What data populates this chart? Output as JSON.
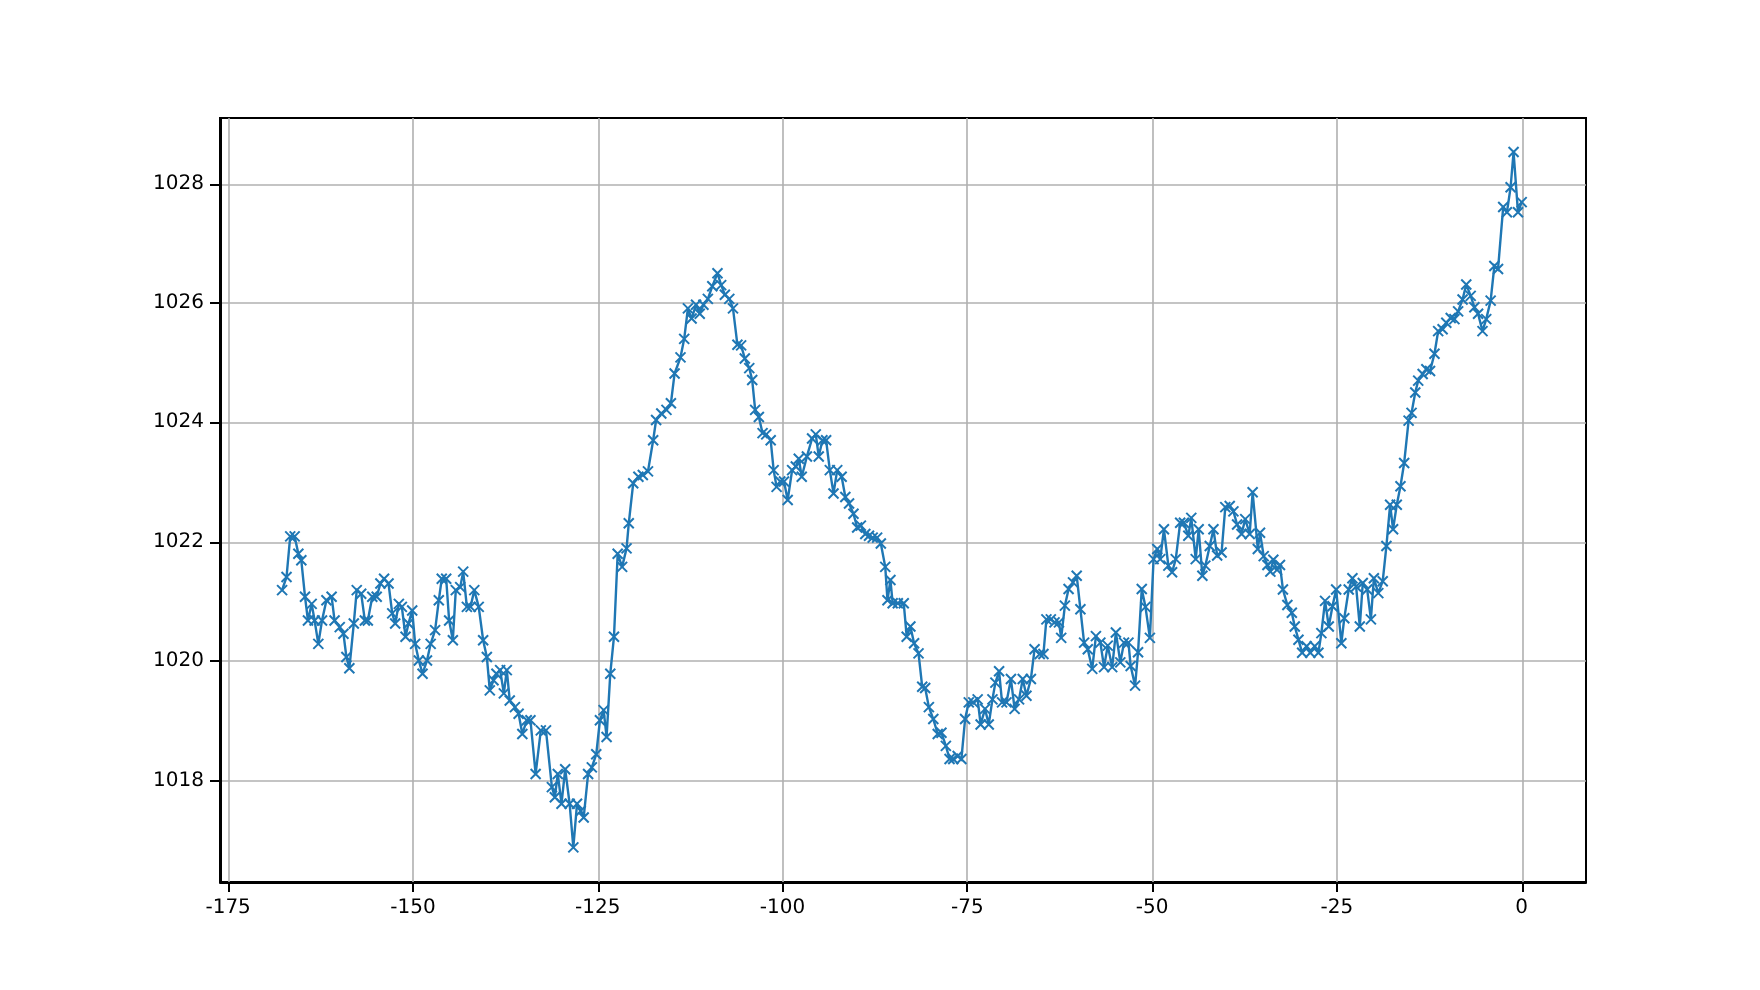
{
  "chart_data": {
    "type": "line",
    "x": [
      -167.7,
      -167.1,
      -166.6,
      -166.0,
      -165.5,
      -165.1,
      -164.6,
      -164.2,
      -163.7,
      -163.3,
      -162.8,
      -162.3,
      -161.7,
      -161.0,
      -160.6,
      -159.9,
      -159.4,
      -159.0,
      -158.6,
      -158.0,
      -157.6,
      -157.0,
      -156.5,
      -156.1,
      -155.5,
      -154.9,
      -154.4,
      -153.9,
      -153.3,
      -152.8,
      -152.4,
      -151.9,
      -151.5,
      -151.0,
      -150.6,
      -150.1,
      -149.7,
      -149.2,
      -148.7,
      -148.1,
      -147.6,
      -147.0,
      -146.5,
      -146.1,
      -145.5,
      -145.1,
      -144.6,
      -144.2,
      -143.6,
      -143.2,
      -142.7,
      -142.2,
      -141.7,
      -141.1,
      -140.5,
      -140.0,
      -139.6,
      -139.1,
      -138.7,
      -138.2,
      -137.7,
      -137.3,
      -136.9,
      -136.2,
      -135.7,
      -135.2,
      -134.6,
      -134.1,
      -133.4,
      -132.7,
      -132.0,
      -131.2,
      -130.8,
      -130.4,
      -129.9,
      -129.4,
      -128.8,
      -128.3,
      -127.8,
      -127.3,
      -126.9,
      -126.3,
      -125.8,
      -125.2,
      -124.7,
      -124.2,
      -123.8,
      -123.3,
      -122.8,
      -122.3,
      -121.7,
      -121.1,
      -120.8,
      -120.2,
      -119.5,
      -118.9,
      -118.2,
      -117.5,
      -117.1,
      -116.4,
      -115.7,
      -115.1,
      -114.6,
      -113.8,
      -113.3,
      -112.8,
      -112.3,
      -111.7,
      -111.2,
      -110.7,
      -110.1,
      -109.5,
      -108.8,
      -108.3,
      -107.8,
      -107.2,
      -106.7,
      -106.1,
      -105.6,
      -105.1,
      -104.5,
      -104.1,
      -103.7,
      -103.2,
      -102.7,
      -102.2,
      -101.6,
      -101.2,
      -100.8,
      -100.3,
      -99.8,
      -99.3,
      -98.7,
      -98.2,
      -97.8,
      -97.4,
      -96.7,
      -96.0,
      -95.5,
      -95.1,
      -94.6,
      -94.1,
      -93.6,
      -93.1,
      -92.6,
      -92.0,
      -91.5,
      -91.0,
      -90.4,
      -89.9,
      -89.4,
      -88.8,
      -88.3,
      -87.8,
      -87.2,
      -86.7,
      -86.1,
      -85.8,
      -85.4,
      -85.1,
      -84.4,
      -83.6,
      -83.2,
      -82.7,
      -82.2,
      -81.6,
      -81.1,
      -80.7,
      -80.2,
      -79.6,
      -79.0,
      -78.5,
      -77.9,
      -77.4,
      -76.9,
      -76.3,
      -75.8,
      -75.3,
      -74.8,
      -74.2,
      -73.6,
      -73.2,
      -72.6,
      -72.1,
      -71.6,
      -71.2,
      -70.7,
      -70.3,
      -69.7,
      -69.1,
      -68.6,
      -68.0,
      -67.5,
      -67.0,
      -66.4,
      -65.9,
      -65.2,
      -64.7,
      -64.3,
      -63.7,
      -63.2,
      -62.6,
      -62.3,
      -61.8,
      -61.3,
      -60.7,
      -60.2,
      -59.7,
      -59.2,
      -58.7,
      -58.1,
      -57.6,
      -57.0,
      -56.5,
      -56.0,
      -55.4,
      -54.9,
      -54.3,
      -53.8,
      -53.2,
      -52.9,
      -52.3,
      -51.9,
      -51.4,
      -50.9,
      -50.3,
      -49.8,
      -49.3,
      -48.9,
      -48.4,
      -47.8,
      -47.3,
      -46.8,
      -46.2,
      -45.7,
      -45.1,
      -44.7,
      -44.1,
      -43.7,
      -43.2,
      -42.8,
      -42.2,
      -41.7,
      -41.2,
      -40.6,
      -40.1,
      -39.5,
      -39.0,
      -38.5,
      -37.9,
      -37.4,
      -36.8,
      -36.4,
      -35.7,
      -35.4,
      -34.9,
      -34.4,
      -34.0,
      -33.6,
      -33.1,
      -32.7,
      -32.3,
      -31.7,
      -31.1,
      -30.7,
      -30.2,
      -29.7,
      -29.1,
      -28.6,
      -28.0,
      -27.5,
      -27.1,
      -26.6,
      -26.1,
      -25.6,
      -25.1,
      -24.4,
      -24.0,
      -23.4,
      -22.9,
      -22.4,
      -21.9,
      -21.5,
      -20.9,
      -20.4,
      -20.0,
      -19.4,
      -18.8,
      -18.3,
      -17.8,
      -17.4,
      -16.9,
      -16.4,
      -15.9,
      -15.3,
      -14.9,
      -14.4,
      -14.0,
      -13.4,
      -12.9,
      -12.4,
      -11.8,
      -11.3,
      -10.7,
      -10.2,
      -9.6,
      -9.1,
      -8.6,
      -8.0,
      -7.5,
      -6.9,
      -6.4,
      -5.9,
      -5.3,
      -4.8,
      -4.2,
      -3.7,
      -3.2,
      -2.5,
      -2.0,
      -1.5,
      -1.1,
      -0.5,
      0.0
    ],
    "series": [
      {
        "color": "#1f77b4",
        "values": [
          1021.19,
          1021.41,
          1022.09,
          1022.09,
          1021.8,
          1021.69,
          1021.08,
          1020.68,
          1020.96,
          1020.68,
          1020.29,
          1020.68,
          1021.02,
          1021.08,
          1020.68,
          1020.57,
          1020.46,
          1020.07,
          1019.88,
          1020.63,
          1021.19,
          1021.13,
          1020.68,
          1020.68,
          1021.08,
          1021.08,
          1021.3,
          1021.38,
          1021.3,
          1020.8,
          1020.63,
          1020.96,
          1020.91,
          1020.41,
          1020.63,
          1020.85,
          1020.29,
          1020.01,
          1019.79,
          1020.01,
          1020.29,
          1020.52,
          1021.02,
          1021.38,
          1021.38,
          1020.68,
          1020.35,
          1021.19,
          1021.24,
          1021.5,
          1020.91,
          1020.91,
          1021.19,
          1020.91,
          1020.35,
          1020.07,
          1019.51,
          1019.68,
          1019.79,
          1019.85,
          1019.46,
          1019.85,
          1019.34,
          1019.23,
          1019.12,
          1018.78,
          1019.01,
          1019.01,
          1018.11,
          1018.84,
          1018.84,
          1017.89,
          1017.72,
          1018.11,
          1017.61,
          1018.19,
          1017.61,
          1016.88,
          1017.61,
          1017.49,
          1017.38,
          1018.11,
          1018.22,
          1018.44,
          1019.01,
          1019.18,
          1018.73,
          1019.79,
          1020.41,
          1021.8,
          1021.58,
          1021.89,
          1022.31,
          1022.98,
          1023.09,
          1023.12,
          1023.18,
          1023.7,
          1024.04,
          1024.15,
          1024.21,
          1024.32,
          1024.82,
          1025.09,
          1025.4,
          1025.91,
          1025.74,
          1025.97,
          1025.82,
          1025.97,
          1026.07,
          1026.28,
          1026.5,
          1026.3,
          1026.14,
          1026.07,
          1025.91,
          1025.3,
          1025.29,
          1025.07,
          1024.91,
          1024.71,
          1024.21,
          1024.09,
          1023.82,
          1023.8,
          1023.7,
          1023.2,
          1022.92,
          1023.01,
          1023.01,
          1022.7,
          1023.2,
          1023.26,
          1023.39,
          1023.09,
          1023.43,
          1023.73,
          1023.8,
          1023.43,
          1023.7,
          1023.7,
          1023.2,
          1022.81,
          1023.2,
          1023.09,
          1022.75,
          1022.64,
          1022.47,
          1022.24,
          1022.27,
          1022.13,
          1022.1,
          1022.07,
          1022.07,
          1021.97,
          1021.58,
          1021.02,
          1021.36,
          1020.97,
          1020.97,
          1020.97,
          1020.41,
          1020.58,
          1020.3,
          1020.13,
          1019.57,
          1019.55,
          1019.23,
          1019.03,
          1018.78,
          1018.8,
          1018.58,
          1018.36,
          1018.36,
          1018.41,
          1018.36,
          1019.03,
          1019.31,
          1019.31,
          1019.36,
          1018.94,
          1019.2,
          1018.94,
          1019.36,
          1019.64,
          1019.83,
          1019.31,
          1019.31,
          1019.7,
          1019.2,
          1019.36,
          1019.7,
          1019.42,
          1019.7,
          1020.2,
          1020.12,
          1020.12,
          1020.7,
          1020.7,
          1020.65,
          1020.65,
          1020.39,
          1020.93,
          1021.21,
          1021.32,
          1021.43,
          1020.87,
          1020.31,
          1020.2,
          1019.87,
          1020.42,
          1020.31,
          1019.9,
          1020.26,
          1019.9,
          1020.48,
          1019.98,
          1020.31,
          1020.31,
          1019.92,
          1019.59,
          1020.15,
          1021.21,
          1020.91,
          1020.39,
          1021.71,
          1021.88,
          1021.71,
          1022.21,
          1021.6,
          1021.49,
          1021.71,
          1022.32,
          1022.32,
          1022.1,
          1022.4,
          1021.71,
          1022.21,
          1021.43,
          1021.6,
          1021.93,
          1022.21,
          1021.77,
          1021.82,
          1022.58,
          1022.6,
          1022.51,
          1022.29,
          1022.13,
          1022.38,
          1022.13,
          1022.83,
          1021.88,
          1022.15,
          1021.76,
          1021.61,
          1021.5,
          1021.7,
          1021.53,
          1021.61,
          1021.2,
          1020.94,
          1020.81,
          1020.58,
          1020.36,
          1020.14,
          1020.25,
          1020.14,
          1020.25,
          1020.14,
          1020.47,
          1021.01,
          1020.58,
          1020.92,
          1021.2,
          1020.3,
          1020.72,
          1021.2,
          1021.39,
          1021.25,
          1020.58,
          1021.31,
          1021.2,
          1020.7,
          1021.39,
          1021.14,
          1021.34,
          1021.93,
          1022.62,
          1022.21,
          1022.62,
          1022.93,
          1023.32,
          1024.03,
          1024.16,
          1024.5,
          1024.7,
          1024.81,
          1024.89,
          1024.86,
          1025.15,
          1025.53,
          1025.56,
          1025.67,
          1025.75,
          1025.73,
          1025.86,
          1026.06,
          1026.31,
          1026.12,
          1025.93,
          1025.82,
          1025.53,
          1025.73,
          1026.04,
          1026.62,
          1026.57,
          1027.61,
          1027.52,
          1027.94,
          1028.53,
          1027.52,
          1027.69
        ]
      }
    ],
    "xlim": [
      -176.1,
      8.7
    ],
    "xticks": [
      -175,
      -150,
      -125,
      -100,
      -75,
      -50,
      -25,
      0
    ],
    "ylim": [
      1016.3,
      1029.1
    ],
    "yticks": [
      1018,
      1020,
      1022,
      1024,
      1026,
      1028
    ],
    "grid": true,
    "marker": "cross",
    "line_style": "solid"
  }
}
